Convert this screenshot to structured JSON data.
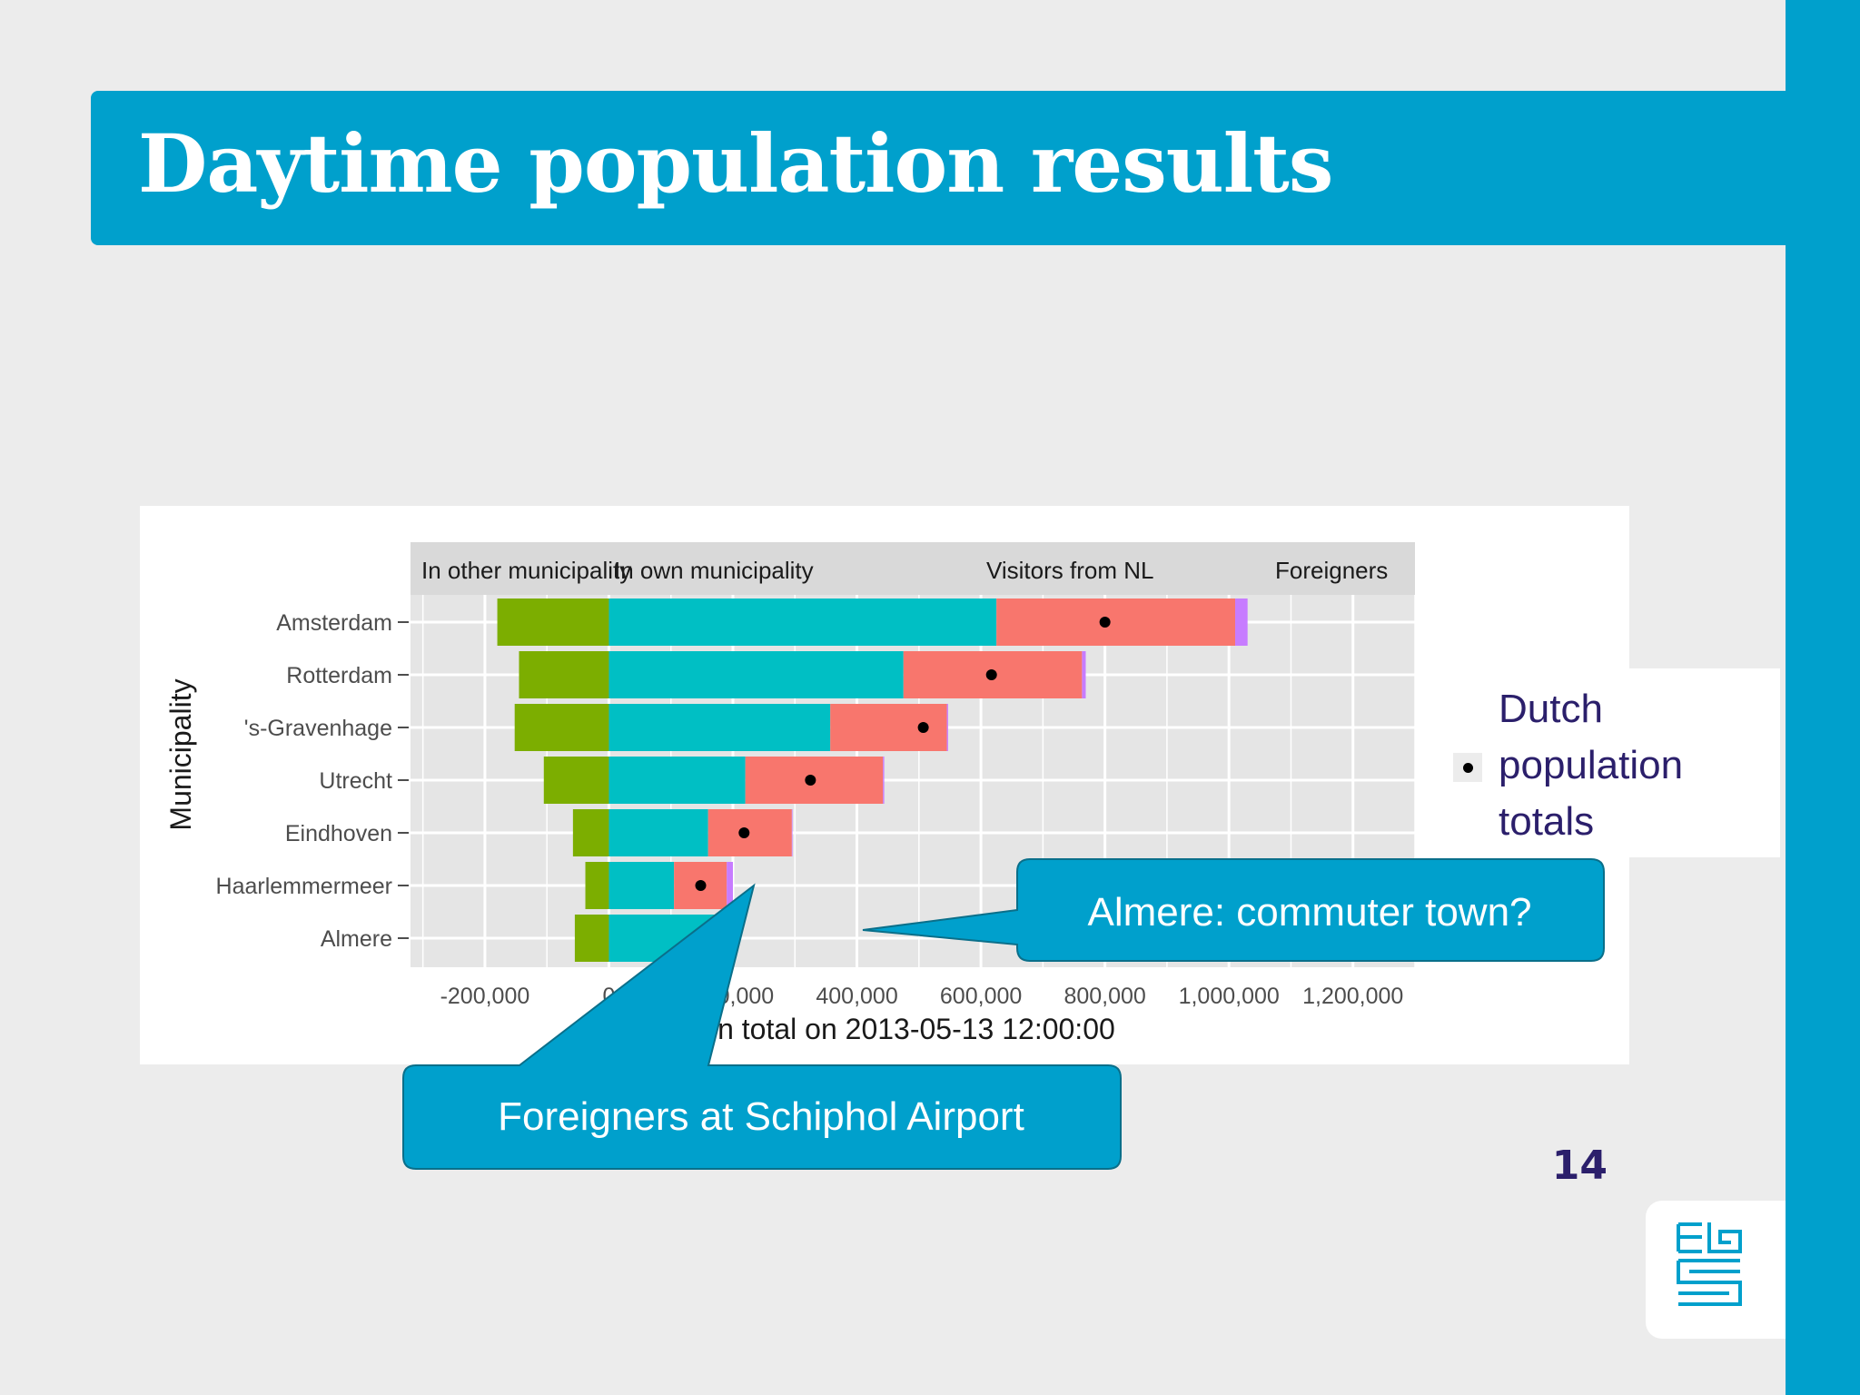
{
  "slide": {
    "title": "Daytime population results",
    "page_number": "14",
    "colors": {
      "accent": "#00a0cc",
      "page_number": "#2b1f6b"
    }
  },
  "legend": {
    "label": "Dutch population totals",
    "symbol": "dot"
  },
  "callouts": {
    "almere": "Almere: commuter town?",
    "schiphol": "Foreigners at Schiphol Airport"
  },
  "logo": {
    "icon": "cbs-logo-icon"
  },
  "chart_data": {
    "type": "bar",
    "orientation": "horizontal",
    "stacked": true,
    "facet_labels": [
      "In other municipality",
      "In own municipality",
      "Visitors from NL",
      "Foreigners"
    ],
    "xlabel": "Daytime population total on 2013-05-13 12:00:00",
    "xlabel_visible": "population total on 2013-05-13 12:00:00",
    "ylabel": "Municipality",
    "categories": [
      "Amsterdam",
      "Rotterdam",
      "'s-Gravenhage",
      "Utrecht",
      "Eindhoven",
      "Haarlemmermeer",
      "Almere"
    ],
    "xlim": [
      -320000,
      1300000
    ],
    "xticks": [
      -200000,
      0,
      200000,
      400000,
      600000,
      800000,
      1000000,
      1200000
    ],
    "xtick_labels": [
      "-200,000",
      "0",
      "200,000",
      "400,000",
      "600,000",
      "800,000",
      "1,000,000",
      "1,200,000"
    ],
    "grid": true,
    "series": [
      {
        "name": "In other municipality",
        "color": "#7cae00",
        "values": [
          -180000,
          -145000,
          -152000,
          -105000,
          -58000,
          -38000,
          -55000
        ]
      },
      {
        "name": "In own municipality",
        "color": "#00bfc4",
        "values": [
          625000,
          475000,
          357000,
          220000,
          160000,
          105000,
          190000
        ]
      },
      {
        "name": "Visitors from NL",
        "color": "#f8766d",
        "values": [
          385000,
          288000,
          188000,
          222000,
          135000,
          85000,
          0
        ]
      },
      {
        "name": "Foreigners",
        "color": "#c77cff",
        "values": [
          20000,
          6000,
          2000,
          2000,
          1000,
          10000,
          0
        ]
      }
    ],
    "points": {
      "name": "Dutch population totals",
      "values": [
        800000,
        617000,
        507000,
        325000,
        218000,
        148000,
        195000
      ]
    }
  }
}
